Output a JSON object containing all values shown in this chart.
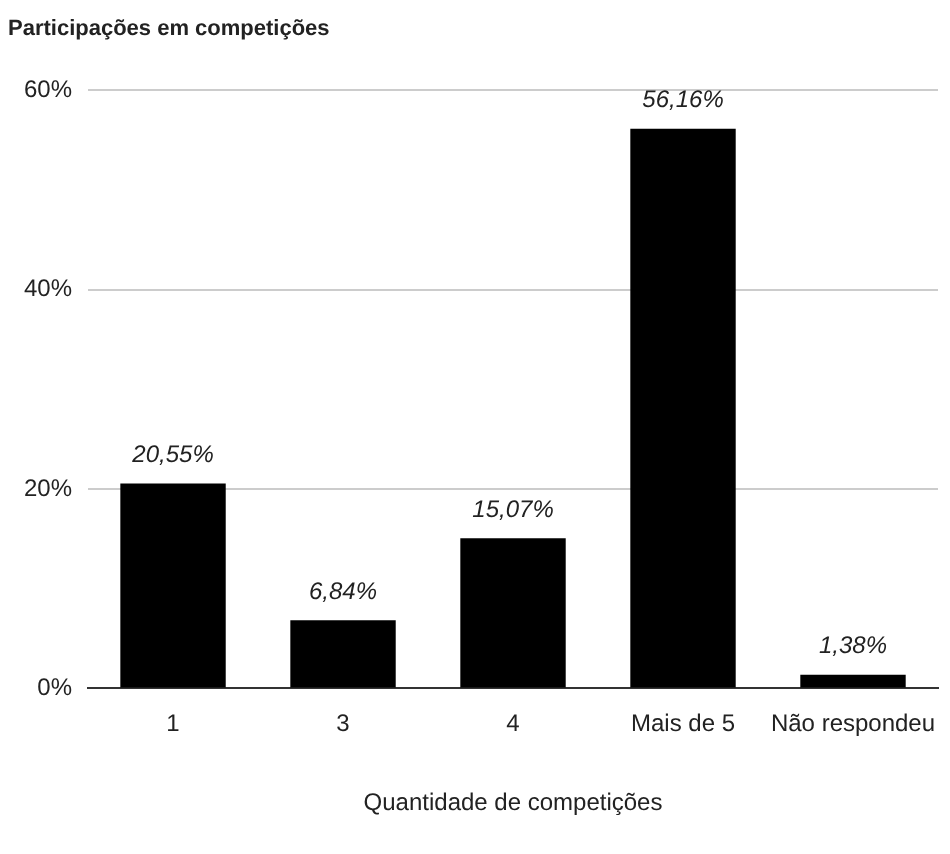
{
  "chart_data": {
    "type": "bar",
    "title": "Participações em competições",
    "xlabel": "Quantidade de competições",
    "categories": [
      "1",
      "3",
      "4",
      "Mais de 5",
      "Não respondeu"
    ],
    "values": [
      20.55,
      6.84,
      15.07,
      56.16,
      1.38
    ],
    "value_labels": [
      "20,55%",
      "6,84%",
      "15,07%",
      "56,16%",
      "1,38%"
    ],
    "color": "#000000",
    "ylim": [
      0,
      60
    ],
    "yticks": [
      {
        "value": 0,
        "label": "0%"
      },
      {
        "value": 20,
        "label": "20%"
      },
      {
        "value": 40,
        "label": "40%"
      },
      {
        "value": 60,
        "label": "60%"
      }
    ],
    "grid": "y"
  }
}
